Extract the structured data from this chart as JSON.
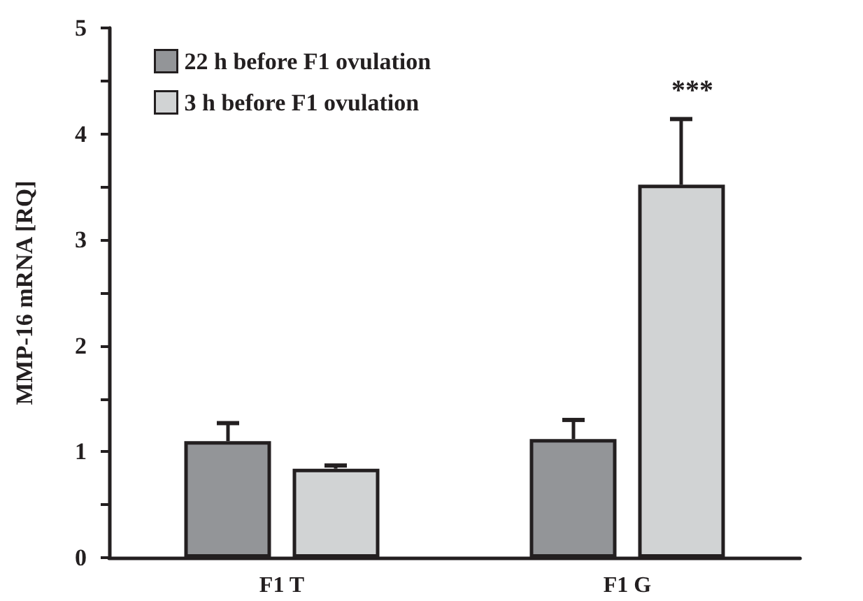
{
  "chart_data": {
    "type": "bar",
    "ylabel": "MMP-16 mRNA [RQ]",
    "categories": [
      "F1 T",
      "F1 G"
    ],
    "series": [
      {
        "name": "22 h before F1 ovulation",
        "color": "#939598",
        "values": [
          1.1,
          1.12
        ],
        "errors": [
          [
            1.1,
            1.27
          ],
          [
            1.12,
            1.3
          ]
        ]
      },
      {
        "name": "3 h before F1 ovulation",
        "color": "#d1d3d4",
        "values": [
          0.84,
          3.52
        ],
        "errors": [
          [
            0.84,
            0.87
          ],
          [
            3.52,
            4.14
          ]
        ]
      }
    ],
    "ylim": [
      0,
      5
    ],
    "yticks": [
      0,
      {
        "value": 0.5,
        "label": null
      },
      1,
      {
        "value": 1.5,
        "label": null
      },
      2,
      {
        "value": 2.5,
        "label": null
      },
      3,
      {
        "value": 3.5,
        "label": null
      },
      4,
      {
        "value": 4.5,
        "label": null
      },
      5
    ],
    "annotations": [
      "***"
    ],
    "legend": "top left",
    "grid": false
  }
}
